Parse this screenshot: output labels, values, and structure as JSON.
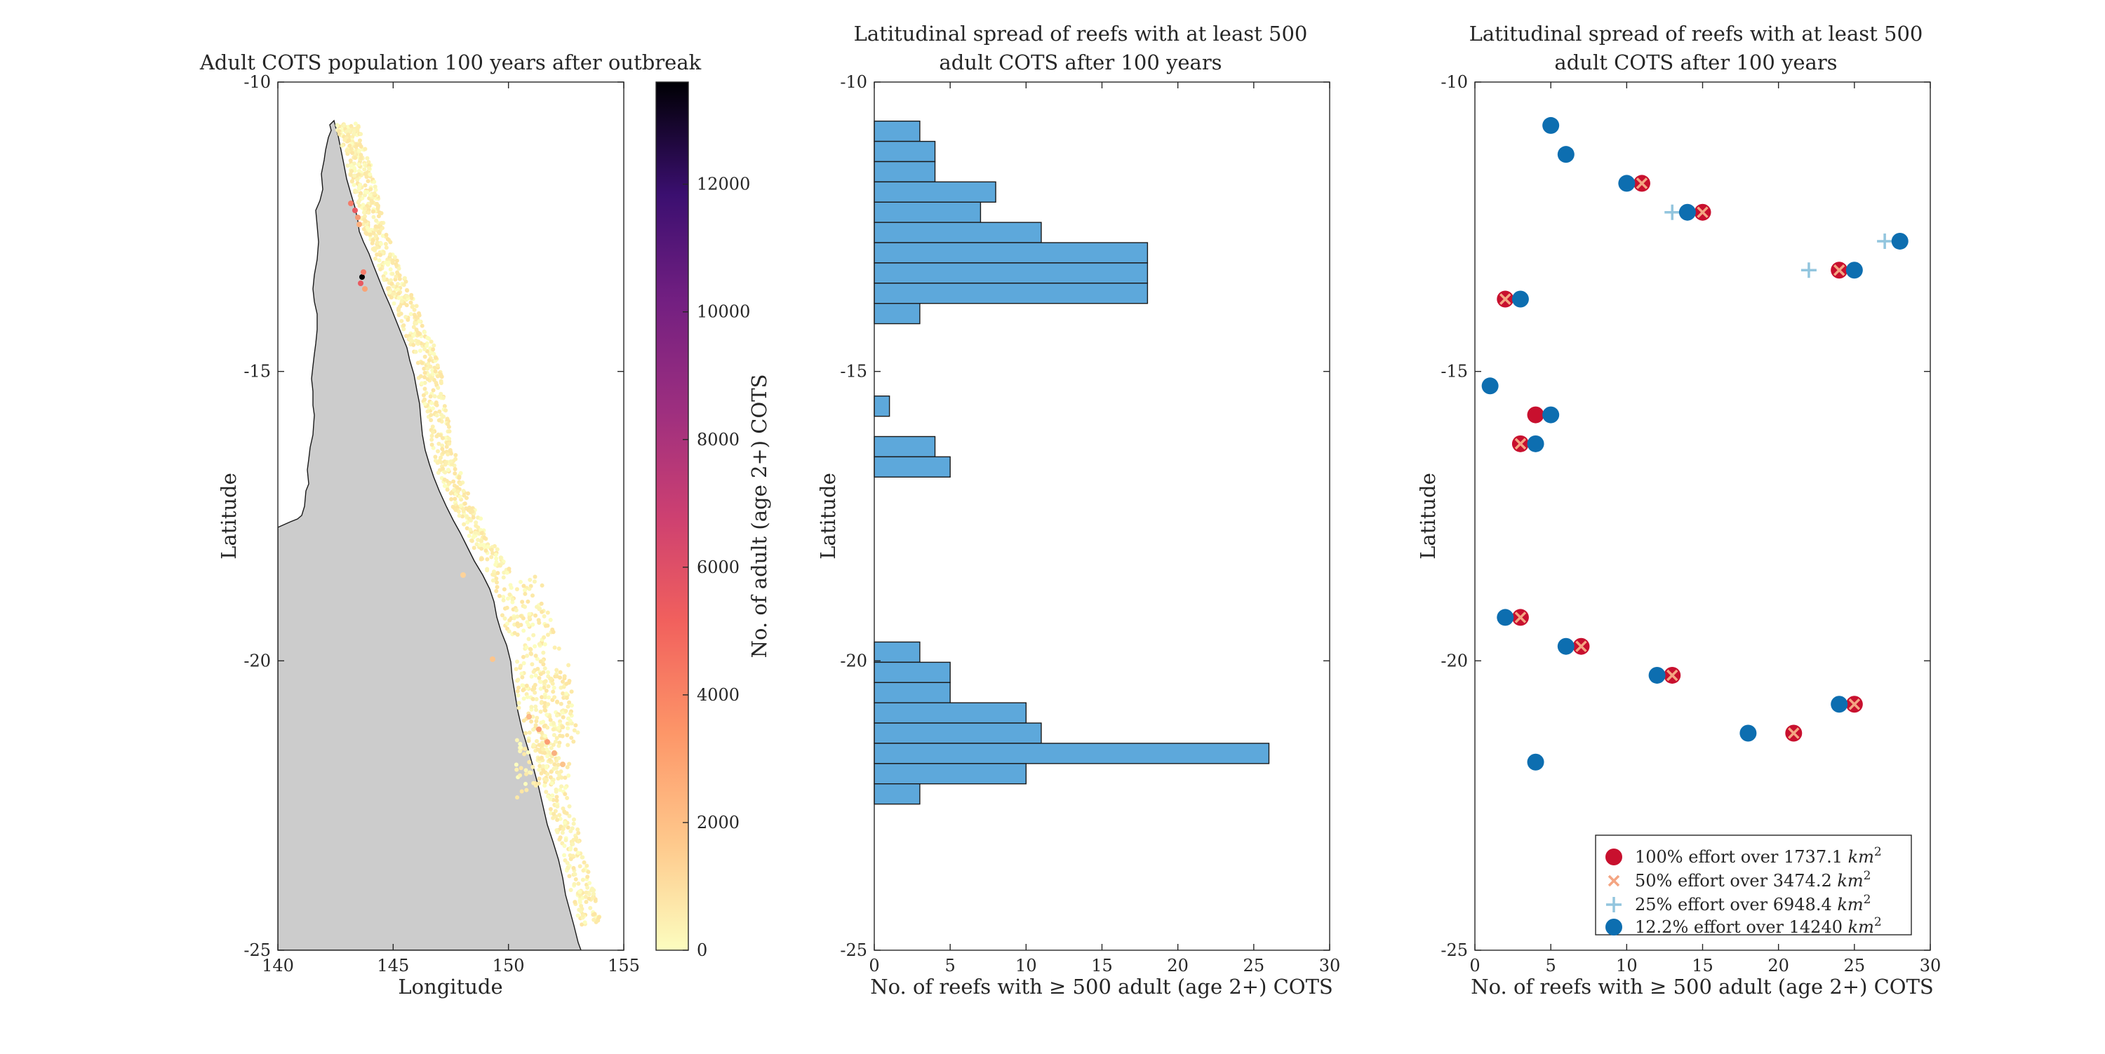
{
  "chart_data": [
    {
      "type": "heatmap",
      "title": "Adult COTS population 100 years after outbreak",
      "xlabel": "Longitude",
      "ylabel": "Latitude",
      "xlim": [
        140,
        155
      ],
      "ylim": [
        -25,
        -10
      ],
      "x_ticks": [
        "140",
        "145",
        "150",
        "155"
      ],
      "y_ticks": [
        "-10",
        "-15",
        "-20",
        "-25"
      ],
      "colorbar": {
        "label": "No. of adult (age 2+) COTS",
        "range": [
          0,
          13600
        ],
        "ticks": [
          "0",
          "2000",
          "4000",
          "6000",
          "8000",
          "10000",
          "12000"
        ],
        "colormap": "magma (reversed): pale yellow (low) to black (high)"
      },
      "land_color": "#cccccc"
    },
    {
      "type": "bar",
      "orientation": "horizontal",
      "title": "Latitudinal spread of reefs with at least 500 adult COTS after 100 years",
      "title_lines": [
        "Latitudinal spread of reefs with at least 500",
        "adult COTS after 100 years"
      ],
      "xlabel": "No. of reefs with ≥ 500 adult (age 2+) COTS",
      "ylabel": "Latitude",
      "xlim": [
        0,
        30
      ],
      "ylim": [
        -25,
        -10
      ],
      "x_ticks": [
        "0",
        "5",
        "10",
        "15",
        "20",
        "25",
        "30"
      ],
      "y_ticks": [
        "-10",
        "-15",
        "-20",
        "-25"
      ],
      "bin_width": 0.35,
      "color": "#5DA8DB",
      "bars": [
        {
          "lat": -10.85,
          "value": 3
        },
        {
          "lat": -11.2,
          "value": 4
        },
        {
          "lat": -11.55,
          "value": 4
        },
        {
          "lat": -11.9,
          "value": 8
        },
        {
          "lat": -12.25,
          "value": 7
        },
        {
          "lat": -12.6,
          "value": 11
        },
        {
          "lat": -12.95,
          "value": 18
        },
        {
          "lat": -13.3,
          "value": 18
        },
        {
          "lat": -13.65,
          "value": 18
        },
        {
          "lat": -14.0,
          "value": 3
        },
        {
          "lat": -15.6,
          "value": 1
        },
        {
          "lat": -16.3,
          "value": 4
        },
        {
          "lat": -16.65,
          "value": 5
        },
        {
          "lat": -19.85,
          "value": 3
        },
        {
          "lat": -20.2,
          "value": 5
        },
        {
          "lat": -20.55,
          "value": 5
        },
        {
          "lat": -20.9,
          "value": 10
        },
        {
          "lat": -21.25,
          "value": 11
        },
        {
          "lat": -21.6,
          "value": 26
        },
        {
          "lat": -21.95,
          "value": 10
        },
        {
          "lat": -22.3,
          "value": 3
        }
      ]
    },
    {
      "type": "scatter",
      "title": "Latitudinal spread of reefs with at least 500 adult COTS after 100 years",
      "title_lines": [
        "Latitudinal spread of reefs with at least 500",
        "adult COTS after 100 years"
      ],
      "xlabel": "No. of reefs with ≥ 500 adult (age 2+) COTS",
      "ylabel": "Latitude",
      "xlim": [
        0,
        30
      ],
      "ylim": [
        -25,
        -10
      ],
      "x_ticks": [
        "0",
        "5",
        "10",
        "15",
        "20",
        "25",
        "30"
      ],
      "y_ticks": [
        "-10",
        "-15",
        "-20",
        "-25"
      ],
      "legend_position": "bottom-right",
      "series": [
        {
          "name": "100% effort over 1737.1",
          "unit_label": "km",
          "unit_exp": "2",
          "marker": "circle-large",
          "color": "#C8102E",
          "points": [
            [
              2,
              -13.75
            ],
            [
              3,
              -16.25
            ],
            [
              3,
              -19.25
            ],
            [
              4,
              -15.75
            ],
            [
              7,
              -19.75
            ],
            [
              11,
              -11.75
            ],
            [
              13,
              -20.25
            ],
            [
              15,
              -12.25
            ],
            [
              21,
              -21.25
            ],
            [
              24,
              -13.25
            ],
            [
              25,
              -20.75
            ]
          ]
        },
        {
          "name": "50% effort over 3474.2",
          "unit_label": "km",
          "unit_exp": "2",
          "marker": "x",
          "color": "#F4A582",
          "points": [
            [
              2,
              -13.75
            ],
            [
              3,
              -16.25
            ],
            [
              3,
              -19.25
            ],
            [
              7,
              -19.75
            ],
            [
              11,
              -11.75
            ],
            [
              13,
              -20.25
            ],
            [
              15,
              -12.25
            ],
            [
              21,
              -21.25
            ],
            [
              24,
              -13.25
            ],
            [
              25,
              -20.75
            ]
          ]
        },
        {
          "name": "25% effort over 6948.4",
          "unit_label": "km",
          "unit_exp": "2",
          "marker": "plus",
          "color": "#92C5DE",
          "points": [
            [
              13,
              -12.25
            ],
            [
              22,
              -13.25
            ],
            [
              27,
              -12.75
            ]
          ]
        },
        {
          "name": "12.2% effort over 14240",
          "unit_label": "km",
          "unit_exp": "2",
          "marker": "circle",
          "color": "#0D6EB0",
          "points": [
            [
              1,
              -15.25
            ],
            [
              2,
              -19.25
            ],
            [
              3,
              -13.75
            ],
            [
              4,
              -16.25
            ],
            [
              4,
              -21.75
            ],
            [
              5,
              -10.75
            ],
            [
              5,
              -15.75
            ],
            [
              6,
              -11.25
            ],
            [
              6,
              -19.75
            ],
            [
              10,
              -11.75
            ],
            [
              12,
              -20.25
            ],
            [
              14,
              -12.25
            ],
            [
              18,
              -21.25
            ],
            [
              24,
              -20.75
            ],
            [
              25,
              -13.25
            ],
            [
              28,
              -12.75
            ]
          ]
        }
      ]
    }
  ]
}
